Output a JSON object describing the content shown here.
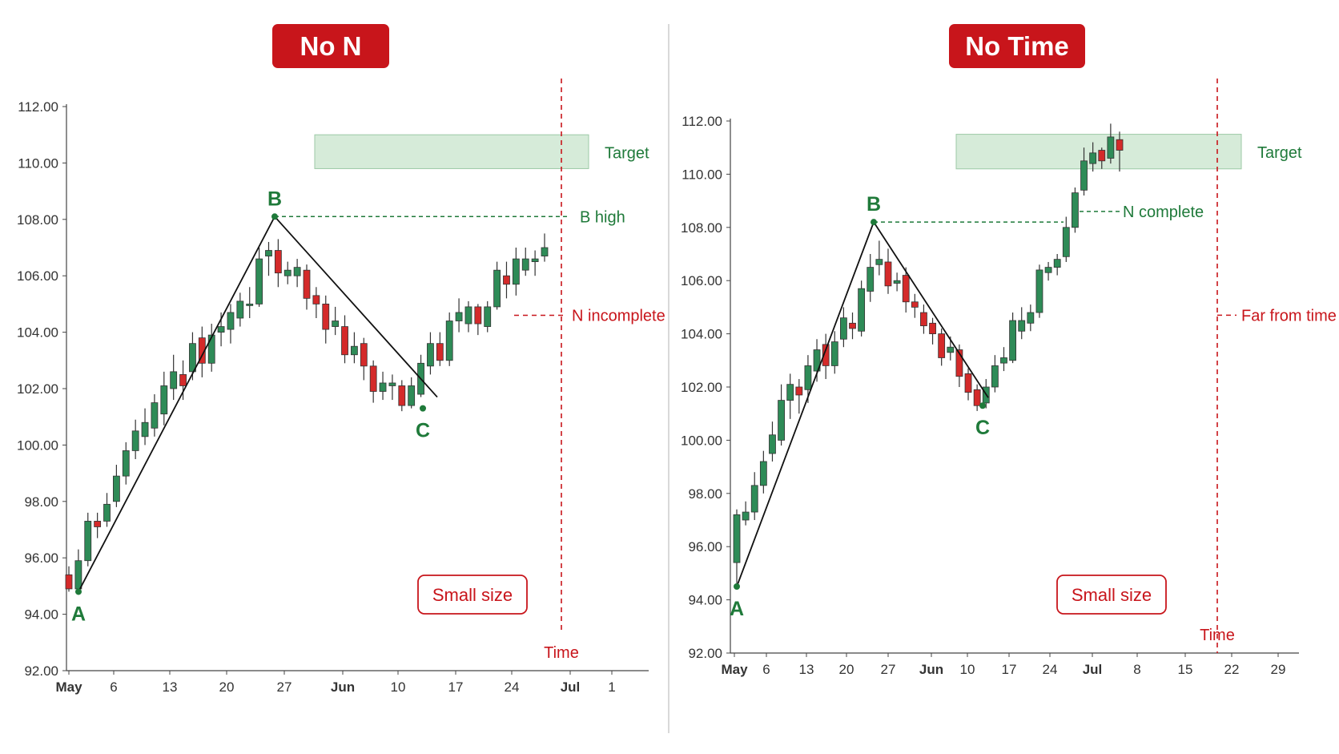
{
  "colors": {
    "bull": "#2e8b57",
    "bear": "#d42a2a",
    "accent_red": "#c8151b",
    "annotation_green": "#1f7a3a",
    "target_zone": "#d6ebd9"
  },
  "chart_data": [
    {
      "type": "candlestick",
      "title": "No N",
      "y_ticks": [
        "112.00",
        "110.00",
        "108.00",
        "106.00",
        "104.00",
        "102.00",
        "100.00",
        "98.00",
        "96.00",
        "94.00",
        "92.00"
      ],
      "ylim": [
        92,
        112
      ],
      "x_ticks": [
        {
          "label": "May",
          "bold": true
        },
        {
          "label": "6",
          "bold": false
        },
        {
          "label": "13",
          "bold": false
        },
        {
          "label": "20",
          "bold": false
        },
        {
          "label": "27",
          "bold": false
        },
        {
          "label": "Jun",
          "bold": true
        },
        {
          "label": "10",
          "bold": false
        },
        {
          "label": "17",
          "bold": false
        },
        {
          "label": "24",
          "bold": false
        },
        {
          "label": "Jul",
          "bold": true
        },
        {
          "label": "1",
          "bold": false
        }
      ],
      "candles": [
        [
          95.4,
          94.9,
          95.7,
          94.8
        ],
        [
          94.9,
          95.9,
          96.3,
          94.9
        ],
        [
          95.9,
          97.3,
          97.6,
          95.7
        ],
        [
          97.3,
          97.1,
          97.6,
          96.7
        ],
        [
          97.3,
          97.9,
          98.3,
          97.1
        ],
        [
          98.0,
          98.9,
          99.3,
          97.8
        ],
        [
          98.9,
          99.8,
          100.1,
          98.6
        ],
        [
          99.8,
          100.5,
          100.9,
          99.5
        ],
        [
          100.3,
          100.8,
          101.3,
          100.0
        ],
        [
          100.6,
          101.5,
          101.8,
          100.3
        ],
        [
          101.1,
          102.1,
          102.6,
          100.7
        ],
        [
          102.0,
          102.6,
          103.2,
          101.6
        ],
        [
          102.5,
          102.1,
          103.0,
          101.6
        ],
        [
          102.6,
          103.6,
          104.0,
          102.3
        ],
        [
          103.8,
          102.9,
          104.2,
          102.4
        ],
        [
          102.9,
          103.9,
          104.3,
          102.6
        ],
        [
          104.0,
          104.2,
          104.7,
          103.5
        ],
        [
          104.1,
          104.7,
          105.0,
          103.6
        ],
        [
          104.5,
          105.1,
          105.4,
          104.2
        ],
        [
          105.0,
          105.0,
          105.6,
          104.5
        ],
        [
          105.0,
          106.6,
          107.0,
          104.9
        ],
        [
          106.7,
          106.9,
          107.2,
          106.0
        ],
        [
          106.9,
          106.1,
          107.3,
          105.6
        ],
        [
          106.0,
          106.2,
          106.5,
          105.7
        ],
        [
          106.0,
          106.3,
          106.6,
          105.6
        ],
        [
          106.2,
          105.2,
          106.4,
          104.8
        ],
        [
          105.3,
          105.0,
          105.6,
          104.5
        ],
        [
          105.0,
          104.1,
          105.3,
          103.6
        ],
        [
          104.2,
          104.4,
          104.9,
          103.9
        ],
        [
          104.2,
          103.2,
          104.6,
          102.9
        ],
        [
          103.2,
          103.5,
          104.0,
          102.9
        ],
        [
          103.6,
          102.8,
          103.8,
          102.3
        ],
        [
          102.8,
          101.9,
          103.0,
          101.5
        ],
        [
          101.9,
          102.2,
          102.6,
          101.6
        ],
        [
          102.1,
          102.2,
          102.5,
          101.6
        ],
        [
          102.1,
          101.4,
          102.3,
          101.2
        ],
        [
          101.4,
          102.1,
          102.4,
          101.3
        ],
        [
          101.8,
          102.9,
          103.2,
          101.7
        ],
        [
          102.8,
          103.6,
          104.0,
          102.5
        ],
        [
          103.6,
          103.0,
          104.0,
          102.8
        ],
        [
          103.0,
          104.4,
          104.7,
          102.8
        ],
        [
          104.4,
          104.7,
          105.2,
          104.0
        ],
        [
          104.3,
          104.9,
          105.1,
          104.0
        ],
        [
          104.9,
          104.3,
          105.0,
          103.9
        ],
        [
          104.2,
          104.9,
          105.1,
          104.0
        ],
        [
          104.9,
          106.2,
          106.5,
          104.8
        ],
        [
          106.0,
          105.7,
          106.5,
          105.2
        ],
        [
          105.7,
          106.6,
          107.0,
          105.3
        ],
        [
          106.2,
          106.6,
          107.0,
          106.0
        ],
        [
          106.5,
          106.6,
          106.9,
          106.0
        ],
        [
          106.7,
          107.0,
          107.5,
          106.5
        ]
      ],
      "path_points": {
        "A": 94.8,
        "B": 108.1,
        "C": 101.3
      },
      "target_zone": [
        109.8,
        111.0
      ],
      "annotations": {
        "point_a": "A",
        "point_b": "B",
        "point_c": "C",
        "target": "Target",
        "b_high": "B high",
        "status": "N incomplete",
        "time": "Time",
        "size": "Small size"
      }
    },
    {
      "type": "candlestick",
      "title": "No Time",
      "y_ticks": [
        "112.00",
        "110.00",
        "108.00",
        "106.00",
        "104.00",
        "102.00",
        "100.00",
        "98.00",
        "96.00",
        "94.00",
        "92.00"
      ],
      "ylim": [
        92,
        112
      ],
      "x_ticks": [
        {
          "label": "May",
          "bold": true
        },
        {
          "label": "6",
          "bold": false
        },
        {
          "label": "13",
          "bold": false
        },
        {
          "label": "20",
          "bold": false
        },
        {
          "label": "27",
          "bold": false
        },
        {
          "label": "Jun",
          "bold": true
        },
        {
          "label": "10",
          "bold": false
        },
        {
          "label": "17",
          "bold": false
        },
        {
          "label": "24",
          "bold": false
        },
        {
          "label": "Jul",
          "bold": true
        },
        {
          "label": "8",
          "bold": false
        },
        {
          "label": "15",
          "bold": false
        },
        {
          "label": "22",
          "bold": false
        },
        {
          "label": "29",
          "bold": false
        }
      ],
      "candles": [
        [
          95.4,
          97.2,
          97.4,
          94.5
        ],
        [
          97.0,
          97.3,
          97.7,
          96.8
        ],
        [
          97.3,
          98.3,
          98.8,
          97.0
        ],
        [
          98.3,
          99.2,
          99.6,
          98.0
        ],
        [
          99.5,
          100.2,
          100.7,
          99.2
        ],
        [
          100.0,
          101.5,
          102.1,
          99.8
        ],
        [
          101.5,
          102.1,
          102.5,
          100.8
        ],
        [
          102.0,
          101.7,
          102.3,
          101.0
        ],
        [
          101.9,
          102.8,
          103.2,
          101.4
        ],
        [
          102.6,
          103.4,
          103.8,
          102.2
        ],
        [
          103.6,
          102.8,
          104.0,
          102.3
        ],
        [
          102.8,
          103.7,
          104.1,
          102.5
        ],
        [
          103.8,
          104.6,
          105.0,
          103.5
        ],
        [
          104.4,
          104.2,
          104.8,
          103.8
        ],
        [
          104.1,
          105.7,
          106.0,
          103.9
        ],
        [
          105.6,
          106.5,
          107.0,
          105.2
        ],
        [
          106.6,
          106.8,
          107.5,
          106.2
        ],
        [
          106.7,
          105.8,
          107.2,
          105.5
        ],
        [
          105.9,
          106.0,
          106.3,
          105.6
        ],
        [
          106.2,
          105.2,
          106.5,
          104.8
        ],
        [
          105.2,
          105.0,
          105.5,
          104.6
        ],
        [
          104.8,
          104.3,
          105.1,
          104.0
        ],
        [
          104.4,
          104.0,
          104.6,
          103.6
        ],
        [
          104.0,
          103.1,
          104.2,
          102.8
        ],
        [
          103.3,
          103.5,
          103.9,
          103.0
        ],
        [
          103.4,
          102.4,
          103.6,
          102.0
        ],
        [
          102.5,
          101.8,
          102.7,
          101.5
        ],
        [
          101.9,
          101.3,
          102.1,
          101.1
        ],
        [
          101.4,
          102.0,
          102.3,
          101.2
        ],
        [
          102.0,
          102.8,
          103.2,
          101.8
        ],
        [
          102.9,
          103.1,
          103.5,
          102.6
        ],
        [
          103.0,
          104.5,
          104.8,
          102.9
        ],
        [
          104.1,
          104.5,
          105.0,
          103.8
        ],
        [
          104.4,
          104.8,
          105.1,
          104.1
        ],
        [
          104.8,
          106.4,
          106.6,
          104.6
        ],
        [
          106.3,
          106.5,
          106.7,
          106.0
        ],
        [
          106.5,
          106.8,
          107.0,
          106.2
        ],
        [
          106.9,
          108.0,
          108.4,
          106.7
        ],
        [
          108.0,
          109.3,
          109.5,
          107.8
        ],
        [
          109.4,
          110.5,
          111.0,
          109.2
        ],
        [
          110.4,
          110.8,
          111.2,
          110.1
        ],
        [
          110.9,
          110.5,
          111.0,
          110.2
        ],
        [
          110.6,
          111.4,
          111.9,
          110.4
        ],
        [
          111.3,
          110.9,
          111.6,
          110.1
        ]
      ],
      "path_points": {
        "A": 94.5,
        "B": 108.2,
        "C": 101.3
      },
      "target_zone": [
        110.2,
        111.5
      ],
      "annotations": {
        "point_a": "A",
        "point_b": "B",
        "point_c": "C",
        "target": "Target",
        "status": "N complete",
        "far_time": "Far from time",
        "time": "Time",
        "size": "Small size"
      }
    }
  ]
}
